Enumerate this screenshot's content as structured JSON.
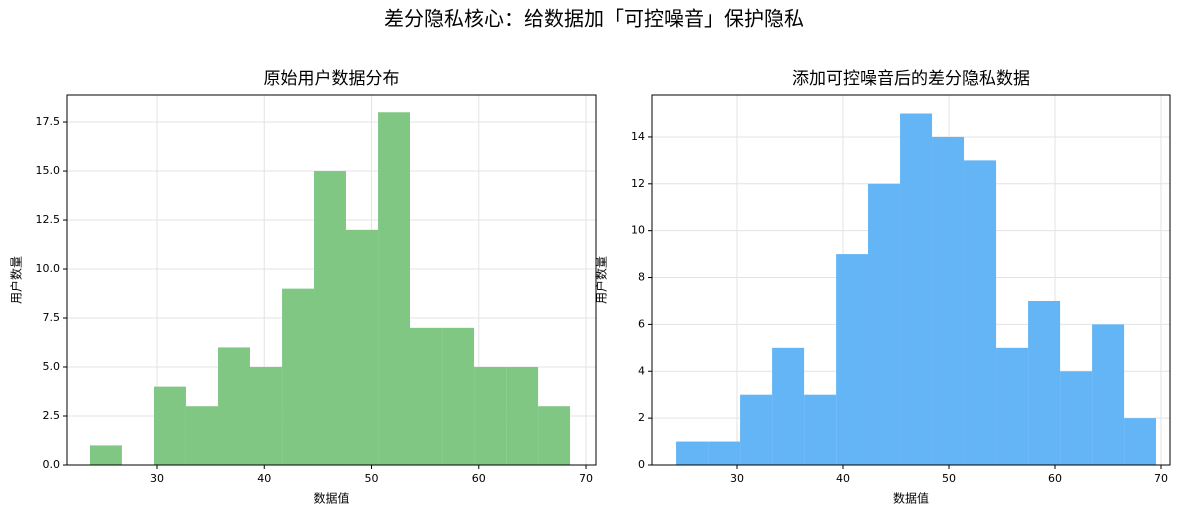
{
  "title": "差分隐私核心：给数据加「可控噪音」保护隐私",
  "chart_data": [
    {
      "type": "histogram",
      "title": "原始用户数据分布",
      "x_label": "数据值",
      "y_label": "用户数量",
      "color": "#81c784",
      "grid": true,
      "bins": [
        23.75,
        26.73,
        29.72,
        32.7,
        35.69,
        38.67,
        41.66,
        44.64,
        47.62,
        50.61,
        53.59,
        56.58,
        59.56,
        62.55,
        65.53,
        68.51
      ],
      "counts": [
        1,
        0,
        4,
        3,
        6,
        5,
        9,
        15,
        12,
        18,
        7,
        7,
        5,
        5,
        3
      ],
      "xlim": [
        21.61,
        70.93
      ],
      "xticks": [
        30,
        40,
        50,
        60,
        70
      ],
      "ylim": [
        0,
        18.88
      ],
      "yticks": [
        {
          "value": 0,
          "label": "0.0"
        },
        {
          "value": 2.5,
          "label": "2.5"
        },
        {
          "value": 5,
          "label": "5.0"
        },
        {
          "value": 7.5,
          "label": "7.5"
        },
        {
          "value": 10,
          "label": "10.0"
        },
        {
          "value": 12.5,
          "label": "12.5"
        },
        {
          "value": 15,
          "label": "15.0"
        },
        {
          "value": 17.5,
          "label": "17.5"
        }
      ]
    },
    {
      "type": "histogram",
      "title": "添加可控噪音后的差分隐私数据",
      "x_label": "数据值",
      "y_label": "用户数量",
      "color": "#64b5f6",
      "grid": true,
      "bins": [
        24.25,
        27.27,
        30.29,
        33.31,
        36.33,
        39.35,
        42.36,
        45.38,
        48.4,
        51.42,
        54.44,
        57.46,
        60.48,
        63.5,
        66.52,
        69.53
      ],
      "counts": [
        1,
        1,
        3,
        5,
        3,
        9,
        12,
        15,
        14,
        13,
        5,
        7,
        4,
        6,
        2
      ],
      "xlim": [
        21.98,
        70.85
      ],
      "xticks": [
        30,
        40,
        50,
        60,
        70
      ],
      "ylim": [
        0,
        15.79
      ],
      "yticks": [
        0,
        2,
        4,
        6,
        8,
        10,
        12,
        14
      ]
    }
  ]
}
